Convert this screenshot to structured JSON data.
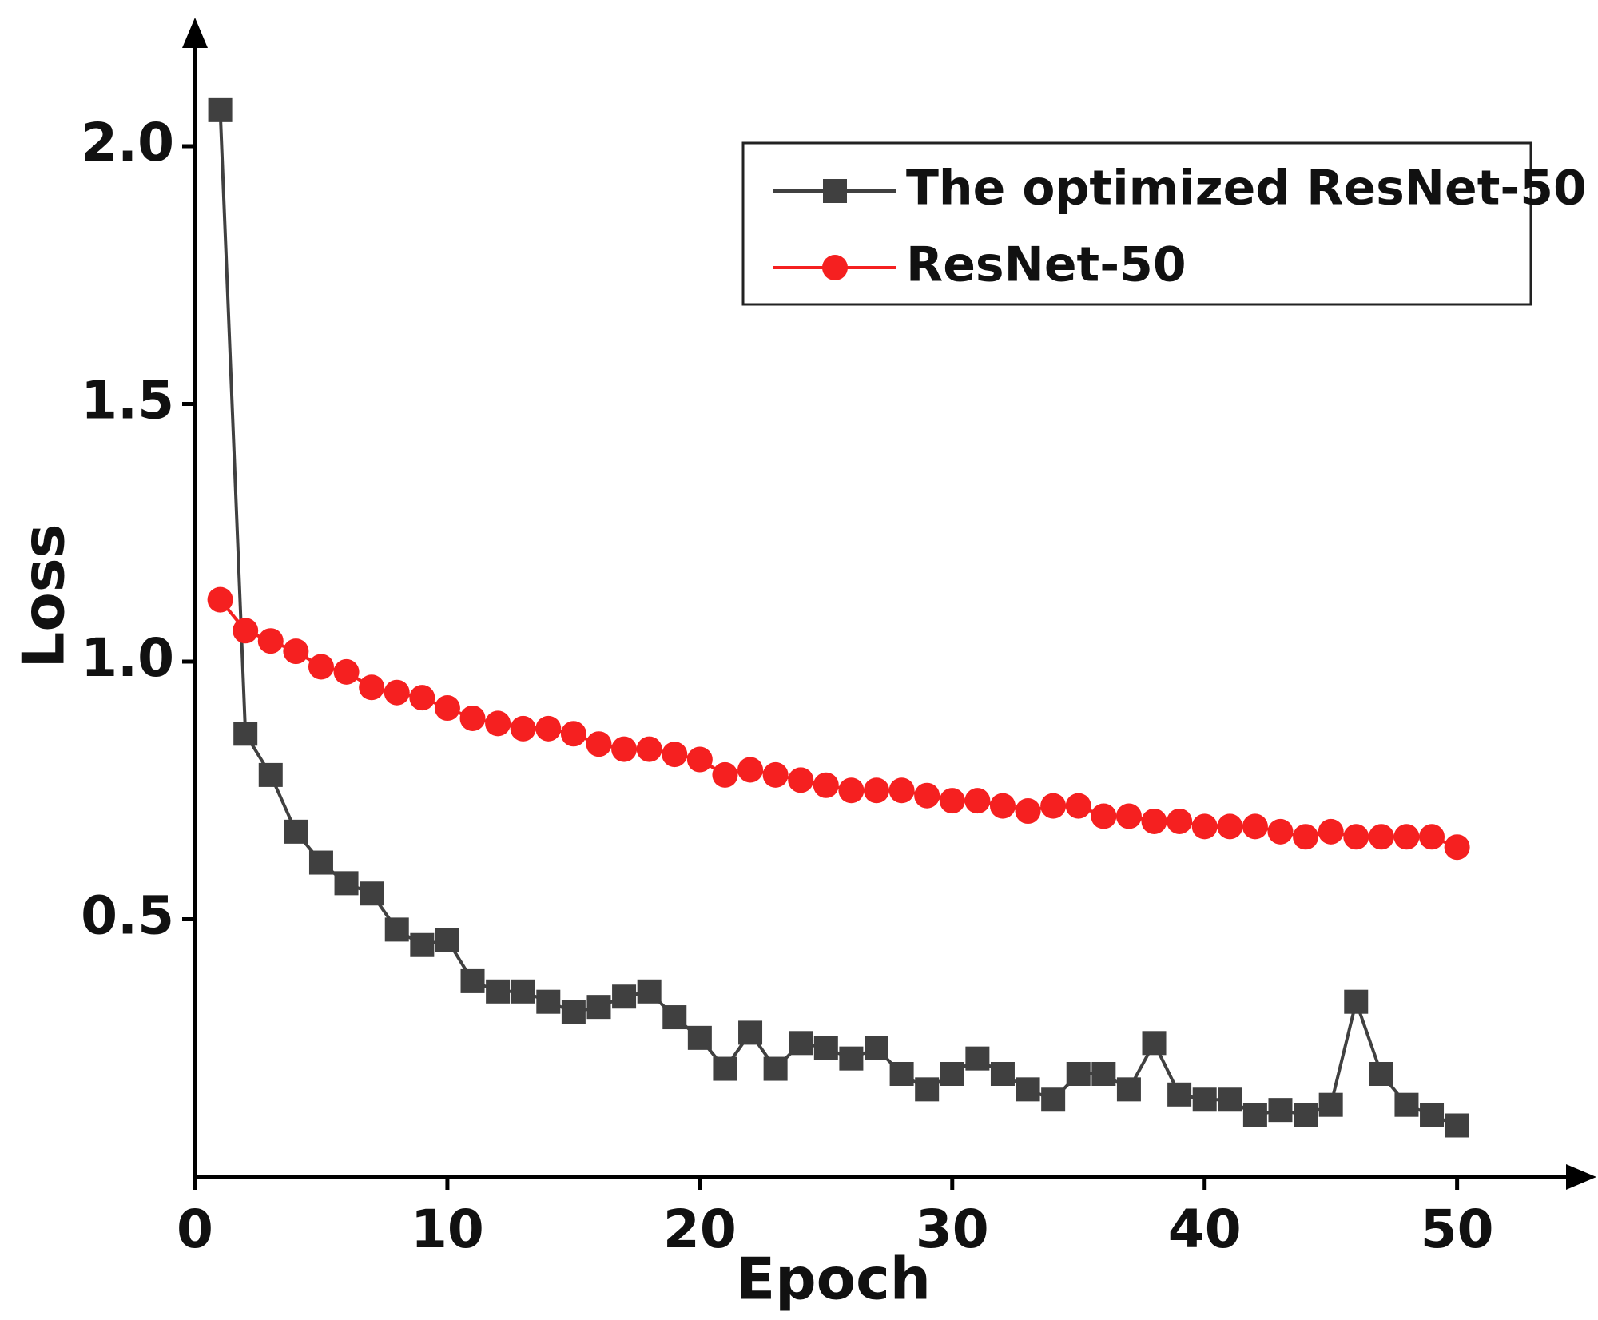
{
  "chart_data": {
    "type": "line",
    "x_label": "Epoch",
    "y_label": "Loss",
    "x": [
      1,
      2,
      3,
      4,
      5,
      6,
      7,
      8,
      9,
      10,
      11,
      12,
      13,
      14,
      15,
      16,
      17,
      18,
      19,
      20,
      21,
      22,
      23,
      24,
      25,
      26,
      27,
      28,
      29,
      30,
      31,
      32,
      33,
      34,
      35,
      36,
      37,
      38,
      39,
      40,
      41,
      42,
      43,
      44,
      45,
      46,
      47,
      48,
      49,
      50
    ],
    "series": [
      {
        "name": "The optimized ResNet-50",
        "color": "#404040",
        "marker": "square",
        "values": [
          2.07,
          0.86,
          0.78,
          0.67,
          0.61,
          0.57,
          0.55,
          0.48,
          0.45,
          0.46,
          0.38,
          0.36,
          0.36,
          0.34,
          0.32,
          0.33,
          0.35,
          0.36,
          0.31,
          0.27,
          0.21,
          0.28,
          0.21,
          0.26,
          0.25,
          0.23,
          0.25,
          0.2,
          0.17,
          0.2,
          0.23,
          0.2,
          0.17,
          0.15,
          0.2,
          0.2,
          0.17,
          0.26,
          0.16,
          0.15,
          0.15,
          0.12,
          0.13,
          0.12,
          0.14,
          0.34,
          0.2,
          0.14,
          0.12,
          0.1
        ]
      },
      {
        "name": "ResNet-50",
        "color": "#f52020",
        "marker": "circle",
        "values": [
          1.12,
          1.06,
          1.04,
          1.02,
          0.99,
          0.98,
          0.95,
          0.94,
          0.93,
          0.91,
          0.89,
          0.88,
          0.87,
          0.87,
          0.86,
          0.84,
          0.83,
          0.83,
          0.82,
          0.81,
          0.78,
          0.79,
          0.78,
          0.77,
          0.76,
          0.75,
          0.75,
          0.75,
          0.74,
          0.73,
          0.73,
          0.72,
          0.71,
          0.72,
          0.72,
          0.7,
          0.7,
          0.69,
          0.69,
          0.68,
          0.68,
          0.68,
          0.67,
          0.66,
          0.67,
          0.66,
          0.66,
          0.66,
          0.66,
          0.64
        ]
      }
    ],
    "xlim": [
      0,
      54
    ],
    "ylim": [
      0,
      2.2
    ],
    "xticks": [
      0,
      10,
      20,
      30,
      40,
      50
    ],
    "yticks": [
      0.5,
      {
        "value": 1.0,
        "label": "1.0"
      },
      1.5,
      {
        "value": 2.0,
        "label": "2.0"
      }
    ],
    "legend": "upper right"
  }
}
